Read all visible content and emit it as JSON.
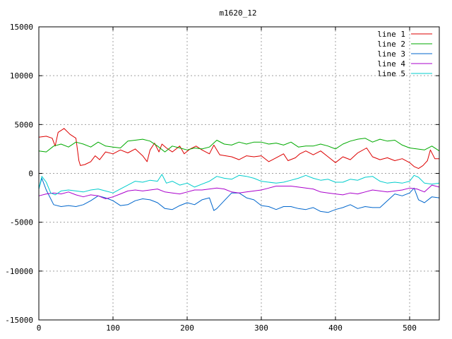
{
  "chart_data": {
    "type": "line",
    "title": "m1620_12",
    "xlabel": "",
    "ylabel": "",
    "xlim": [
      0,
      540
    ],
    "ylim": [
      -15000,
      15000
    ],
    "x_ticks": [
      0,
      100,
      200,
      300,
      400,
      500
    ],
    "y_ticks": [
      -15000,
      -10000,
      -5000,
      0,
      5000,
      10000,
      15000
    ],
    "grid": true,
    "legend_position": "top-right",
    "series": [
      {
        "name": "line 1",
        "color": "#dd0000",
        "points": [
          [
            0,
            3700
          ],
          [
            10,
            3800
          ],
          [
            18,
            3600
          ],
          [
            22,
            2800
          ],
          [
            26,
            4200
          ],
          [
            34,
            4600
          ],
          [
            42,
            4000
          ],
          [
            50,
            3600
          ],
          [
            54,
            1300
          ],
          [
            56,
            800
          ],
          [
            62,
            900
          ],
          [
            70,
            1200
          ],
          [
            76,
            1800
          ],
          [
            82,
            1400
          ],
          [
            90,
            2200
          ],
          [
            100,
            2000
          ],
          [
            110,
            2400
          ],
          [
            120,
            2100
          ],
          [
            130,
            2500
          ],
          [
            140,
            1800
          ],
          [
            146,
            1200
          ],
          [
            150,
            2400
          ],
          [
            156,
            3100
          ],
          [
            162,
            2200
          ],
          [
            166,
            3000
          ],
          [
            172,
            2600
          ],
          [
            180,
            2200
          ],
          [
            190,
            2800
          ],
          [
            196,
            2000
          ],
          [
            204,
            2500
          ],
          [
            212,
            2800
          ],
          [
            220,
            2400
          ],
          [
            230,
            2000
          ],
          [
            236,
            2900
          ],
          [
            244,
            1900
          ],
          [
            252,
            1800
          ],
          [
            260,
            1700
          ],
          [
            270,
            1400
          ],
          [
            280,
            1800
          ],
          [
            290,
            1700
          ],
          [
            300,
            1800
          ],
          [
            310,
            1200
          ],
          [
            320,
            1600
          ],
          [
            330,
            2000
          ],
          [
            336,
            1300
          ],
          [
            346,
            1600
          ],
          [
            352,
            2000
          ],
          [
            360,
            2300
          ],
          [
            370,
            1900
          ],
          [
            380,
            2300
          ],
          [
            390,
            1700
          ],
          [
            400,
            1100
          ],
          [
            410,
            1700
          ],
          [
            420,
            1400
          ],
          [
            430,
            2100
          ],
          [
            442,
            2600
          ],
          [
            450,
            1700
          ],
          [
            460,
            1400
          ],
          [
            470,
            1600
          ],
          [
            480,
            1300
          ],
          [
            490,
            1500
          ],
          [
            500,
            1100
          ],
          [
            506,
            700
          ],
          [
            512,
            500
          ],
          [
            518,
            800
          ],
          [
            524,
            1300
          ],
          [
            528,
            2400
          ],
          [
            534,
            1500
          ],
          [
            540,
            1500
          ]
        ]
      },
      {
        "name": "line 2",
        "color": "#00aa00",
        "points": [
          [
            0,
            2300
          ],
          [
            10,
            2200
          ],
          [
            20,
            2800
          ],
          [
            30,
            3000
          ],
          [
            40,
            2700
          ],
          [
            50,
            3200
          ],
          [
            60,
            3000
          ],
          [
            70,
            2700
          ],
          [
            80,
            3200
          ],
          [
            90,
            2800
          ],
          [
            100,
            2700
          ],
          [
            110,
            2600
          ],
          [
            120,
            3300
          ],
          [
            130,
            3400
          ],
          [
            140,
            3500
          ],
          [
            150,
            3300
          ],
          [
            160,
            2800
          ],
          [
            170,
            2200
          ],
          [
            180,
            2800
          ],
          [
            190,
            2600
          ],
          [
            200,
            2400
          ],
          [
            210,
            2600
          ],
          [
            220,
            2500
          ],
          [
            230,
            2700
          ],
          [
            240,
            3400
          ],
          [
            250,
            3000
          ],
          [
            260,
            2900
          ],
          [
            270,
            3200
          ],
          [
            280,
            3000
          ],
          [
            290,
            3200
          ],
          [
            300,
            3200
          ],
          [
            310,
            3000
          ],
          [
            320,
            3100
          ],
          [
            330,
            2900
          ],
          [
            340,
            3200
          ],
          [
            350,
            2700
          ],
          [
            360,
            2800
          ],
          [
            370,
            2800
          ],
          [
            380,
            3000
          ],
          [
            390,
            2800
          ],
          [
            400,
            2500
          ],
          [
            410,
            3000
          ],
          [
            420,
            3300
          ],
          [
            430,
            3500
          ],
          [
            440,
            3600
          ],
          [
            450,
            3200
          ],
          [
            460,
            3500
          ],
          [
            470,
            3300
          ],
          [
            480,
            3400
          ],
          [
            490,
            2900
          ],
          [
            500,
            2600
          ],
          [
            510,
            2500
          ],
          [
            520,
            2400
          ],
          [
            530,
            2800
          ],
          [
            540,
            2300
          ]
        ]
      },
      {
        "name": "line 3",
        "color": "#0066cc",
        "points": [
          [
            0,
            -1600
          ],
          [
            4,
            -500
          ],
          [
            10,
            -1700
          ],
          [
            20,
            -3200
          ],
          [
            30,
            -3400
          ],
          [
            40,
            -3300
          ],
          [
            50,
            -3400
          ],
          [
            60,
            -3200
          ],
          [
            70,
            -2800
          ],
          [
            80,
            -2300
          ],
          [
            90,
            -2500
          ],
          [
            100,
            -2800
          ],
          [
            110,
            -3300
          ],
          [
            120,
            -3200
          ],
          [
            130,
            -2800
          ],
          [
            140,
            -2600
          ],
          [
            150,
            -2700
          ],
          [
            160,
            -3000
          ],
          [
            170,
            -3600
          ],
          [
            180,
            -3700
          ],
          [
            190,
            -3300
          ],
          [
            200,
            -3000
          ],
          [
            210,
            -3200
          ],
          [
            220,
            -2700
          ],
          [
            230,
            -2500
          ],
          [
            236,
            -3800
          ],
          [
            240,
            -3600
          ],
          [
            250,
            -2800
          ],
          [
            260,
            -2000
          ],
          [
            270,
            -2000
          ],
          [
            280,
            -2500
          ],
          [
            290,
            -2700
          ],
          [
            300,
            -3300
          ],
          [
            310,
            -3400
          ],
          [
            320,
            -3700
          ],
          [
            330,
            -3400
          ],
          [
            340,
            -3400
          ],
          [
            350,
            -3600
          ],
          [
            360,
            -3700
          ],
          [
            370,
            -3500
          ],
          [
            380,
            -3900
          ],
          [
            390,
            -4000
          ],
          [
            400,
            -3700
          ],
          [
            410,
            -3500
          ],
          [
            420,
            -3200
          ],
          [
            430,
            -3600
          ],
          [
            440,
            -3400
          ],
          [
            450,
            -3500
          ],
          [
            460,
            -3500
          ],
          [
            470,
            -2800
          ],
          [
            480,
            -2100
          ],
          [
            490,
            -2300
          ],
          [
            500,
            -2000
          ],
          [
            506,
            -1500
          ],
          [
            512,
            -2700
          ],
          [
            520,
            -3000
          ],
          [
            530,
            -2400
          ],
          [
            540,
            -2500
          ]
        ]
      },
      {
        "name": "line 4",
        "color": "#aa00cc",
        "points": [
          [
            0,
            -2300
          ],
          [
            10,
            -2100
          ],
          [
            20,
            -2000
          ],
          [
            30,
            -2100
          ],
          [
            40,
            -1900
          ],
          [
            50,
            -2200
          ],
          [
            60,
            -2400
          ],
          [
            70,
            -2200
          ],
          [
            80,
            -2300
          ],
          [
            90,
            -2600
          ],
          [
            100,
            -2400
          ],
          [
            110,
            -2100
          ],
          [
            120,
            -1800
          ],
          [
            130,
            -1700
          ],
          [
            140,
            -1800
          ],
          [
            150,
            -1700
          ],
          [
            160,
            -1600
          ],
          [
            170,
            -1900
          ],
          [
            180,
            -2000
          ],
          [
            190,
            -2100
          ],
          [
            200,
            -1900
          ],
          [
            210,
            -1700
          ],
          [
            220,
            -1700
          ],
          [
            230,
            -1600
          ],
          [
            240,
            -1500
          ],
          [
            250,
            -1600
          ],
          [
            260,
            -1900
          ],
          [
            270,
            -2000
          ],
          [
            280,
            -1900
          ],
          [
            290,
            -1800
          ],
          [
            300,
            -1700
          ],
          [
            310,
            -1500
          ],
          [
            320,
            -1300
          ],
          [
            330,
            -1300
          ],
          [
            340,
            -1300
          ],
          [
            350,
            -1400
          ],
          [
            360,
            -1500
          ],
          [
            370,
            -1600
          ],
          [
            380,
            -1900
          ],
          [
            390,
            -2000
          ],
          [
            400,
            -2100
          ],
          [
            410,
            -2200
          ],
          [
            420,
            -2000
          ],
          [
            430,
            -2100
          ],
          [
            440,
            -1900
          ],
          [
            450,
            -1700
          ],
          [
            460,
            -1800
          ],
          [
            470,
            -1900
          ],
          [
            480,
            -1800
          ],
          [
            490,
            -1700
          ],
          [
            500,
            -1500
          ],
          [
            510,
            -1600
          ],
          [
            520,
            -1900
          ],
          [
            530,
            -1200
          ],
          [
            540,
            -1400
          ]
        ]
      },
      {
        "name": "line 5",
        "color": "#00cccc",
        "points": [
          [
            0,
            -1600
          ],
          [
            4,
            -300
          ],
          [
            10,
            -900
          ],
          [
            16,
            -2000
          ],
          [
            22,
            -2200
          ],
          [
            30,
            -1800
          ],
          [
            40,
            -1700
          ],
          [
            50,
            -1800
          ],
          [
            60,
            -1900
          ],
          [
            70,
            -1700
          ],
          [
            80,
            -1600
          ],
          [
            90,
            -1800
          ],
          [
            100,
            -2000
          ],
          [
            110,
            -1600
          ],
          [
            120,
            -1200
          ],
          [
            130,
            -800
          ],
          [
            140,
            -900
          ],
          [
            150,
            -700
          ],
          [
            160,
            -800
          ],
          [
            166,
            -100
          ],
          [
            172,
            -1000
          ],
          [
            180,
            -800
          ],
          [
            190,
            -1200
          ],
          [
            200,
            -1000
          ],
          [
            210,
            -1400
          ],
          [
            220,
            -1100
          ],
          [
            230,
            -800
          ],
          [
            240,
            -300
          ],
          [
            250,
            -500
          ],
          [
            260,
            -600
          ],
          [
            270,
            -200
          ],
          [
            280,
            -300
          ],
          [
            290,
            -500
          ],
          [
            300,
            -800
          ],
          [
            310,
            -900
          ],
          [
            320,
            -1000
          ],
          [
            330,
            -900
          ],
          [
            340,
            -700
          ],
          [
            350,
            -500
          ],
          [
            360,
            -200
          ],
          [
            370,
            -500
          ],
          [
            380,
            -700
          ],
          [
            390,
            -600
          ],
          [
            400,
            -900
          ],
          [
            410,
            -900
          ],
          [
            420,
            -600
          ],
          [
            430,
            -700
          ],
          [
            440,
            -400
          ],
          [
            450,
            -300
          ],
          [
            460,
            -800
          ],
          [
            470,
            -1000
          ],
          [
            480,
            -900
          ],
          [
            490,
            -1000
          ],
          [
            500,
            -800
          ],
          [
            506,
            -200
          ],
          [
            512,
            -400
          ],
          [
            520,
            -1000
          ],
          [
            530,
            -1100
          ],
          [
            540,
            -1000
          ]
        ]
      }
    ]
  }
}
